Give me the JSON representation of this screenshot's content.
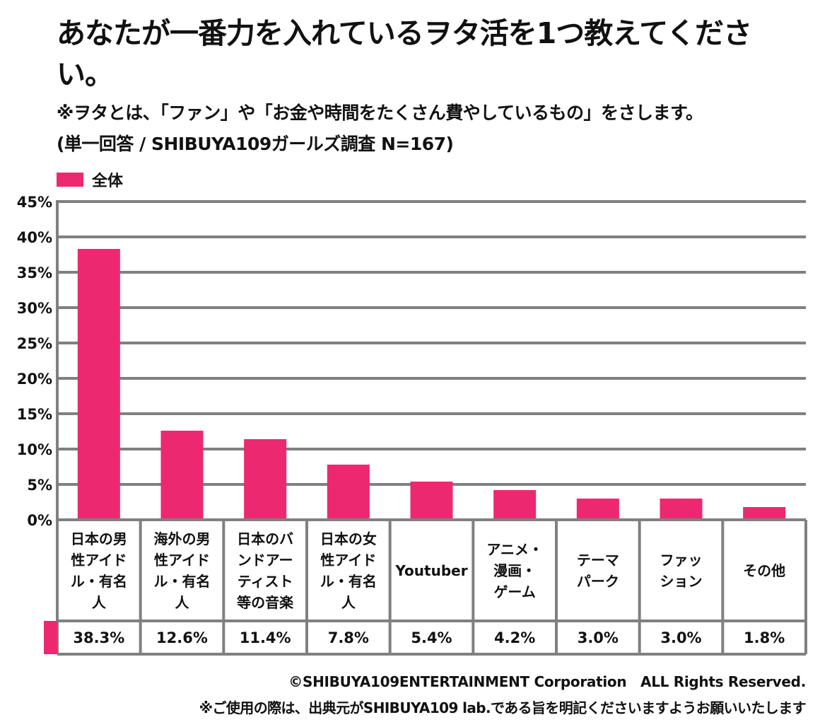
{
  "title": "あなたが一番力を入れているヲタ活を1つ教えてください。",
  "subtitle": "※ヲタとは、「ファン」や「お金や時間をたくさん費やしているもの」をさします。",
  "subtitle2": "(単一回答 / SHIBUYA109ガールズ調査 N=167)",
  "footer": {
    "copyright": "©SHIBUYA109ENTERTAINMENT Corporation　ALL Rights Reserved.",
    "notice": "※ご使用の際は、出典元がSHIBUYA109 lab.である旨を明記くださいますようお願いいたします"
  },
  "colors": {
    "bar": "#ec2870",
    "grid": "#808080"
  },
  "chart_data": {
    "type": "bar",
    "title": "あなたが一番力を入れているヲタ活を1つ教えてください。",
    "xlabel": "",
    "ylabel": "",
    "ylim": [
      0,
      45
    ],
    "yticks": [
      0,
      5,
      10,
      15,
      20,
      25,
      30,
      35,
      40,
      45
    ],
    "ytick_labels": [
      "0%",
      "5%",
      "10%",
      "15%",
      "20%",
      "25%",
      "30%",
      "35%",
      "40%",
      "45%"
    ],
    "grid": true,
    "legend_position": "top-left",
    "categories": [
      "日本の男\n性アイド\nル・有名\n人",
      "海外の男\n性アイド\nル・有名\n人",
      "日本のバ\nンドアー\nティスト\n等の音楽",
      "日本の女\n性アイド\nル・有名\n人",
      "Youtuber",
      "アニメ・\n漫画・\nゲーム",
      "テーマ\nパーク",
      "ファッ\nション",
      "その他"
    ],
    "series": [
      {
        "name": "全体",
        "values": [
          38.3,
          12.6,
          11.4,
          7.8,
          5.4,
          4.2,
          3.0,
          3.0,
          1.8
        ],
        "value_labels": [
          "38.3%",
          "12.6%",
          "11.4%",
          "7.8%",
          "5.4%",
          "4.2%",
          "3.0%",
          "3.0%",
          "1.8%"
        ]
      }
    ]
  }
}
